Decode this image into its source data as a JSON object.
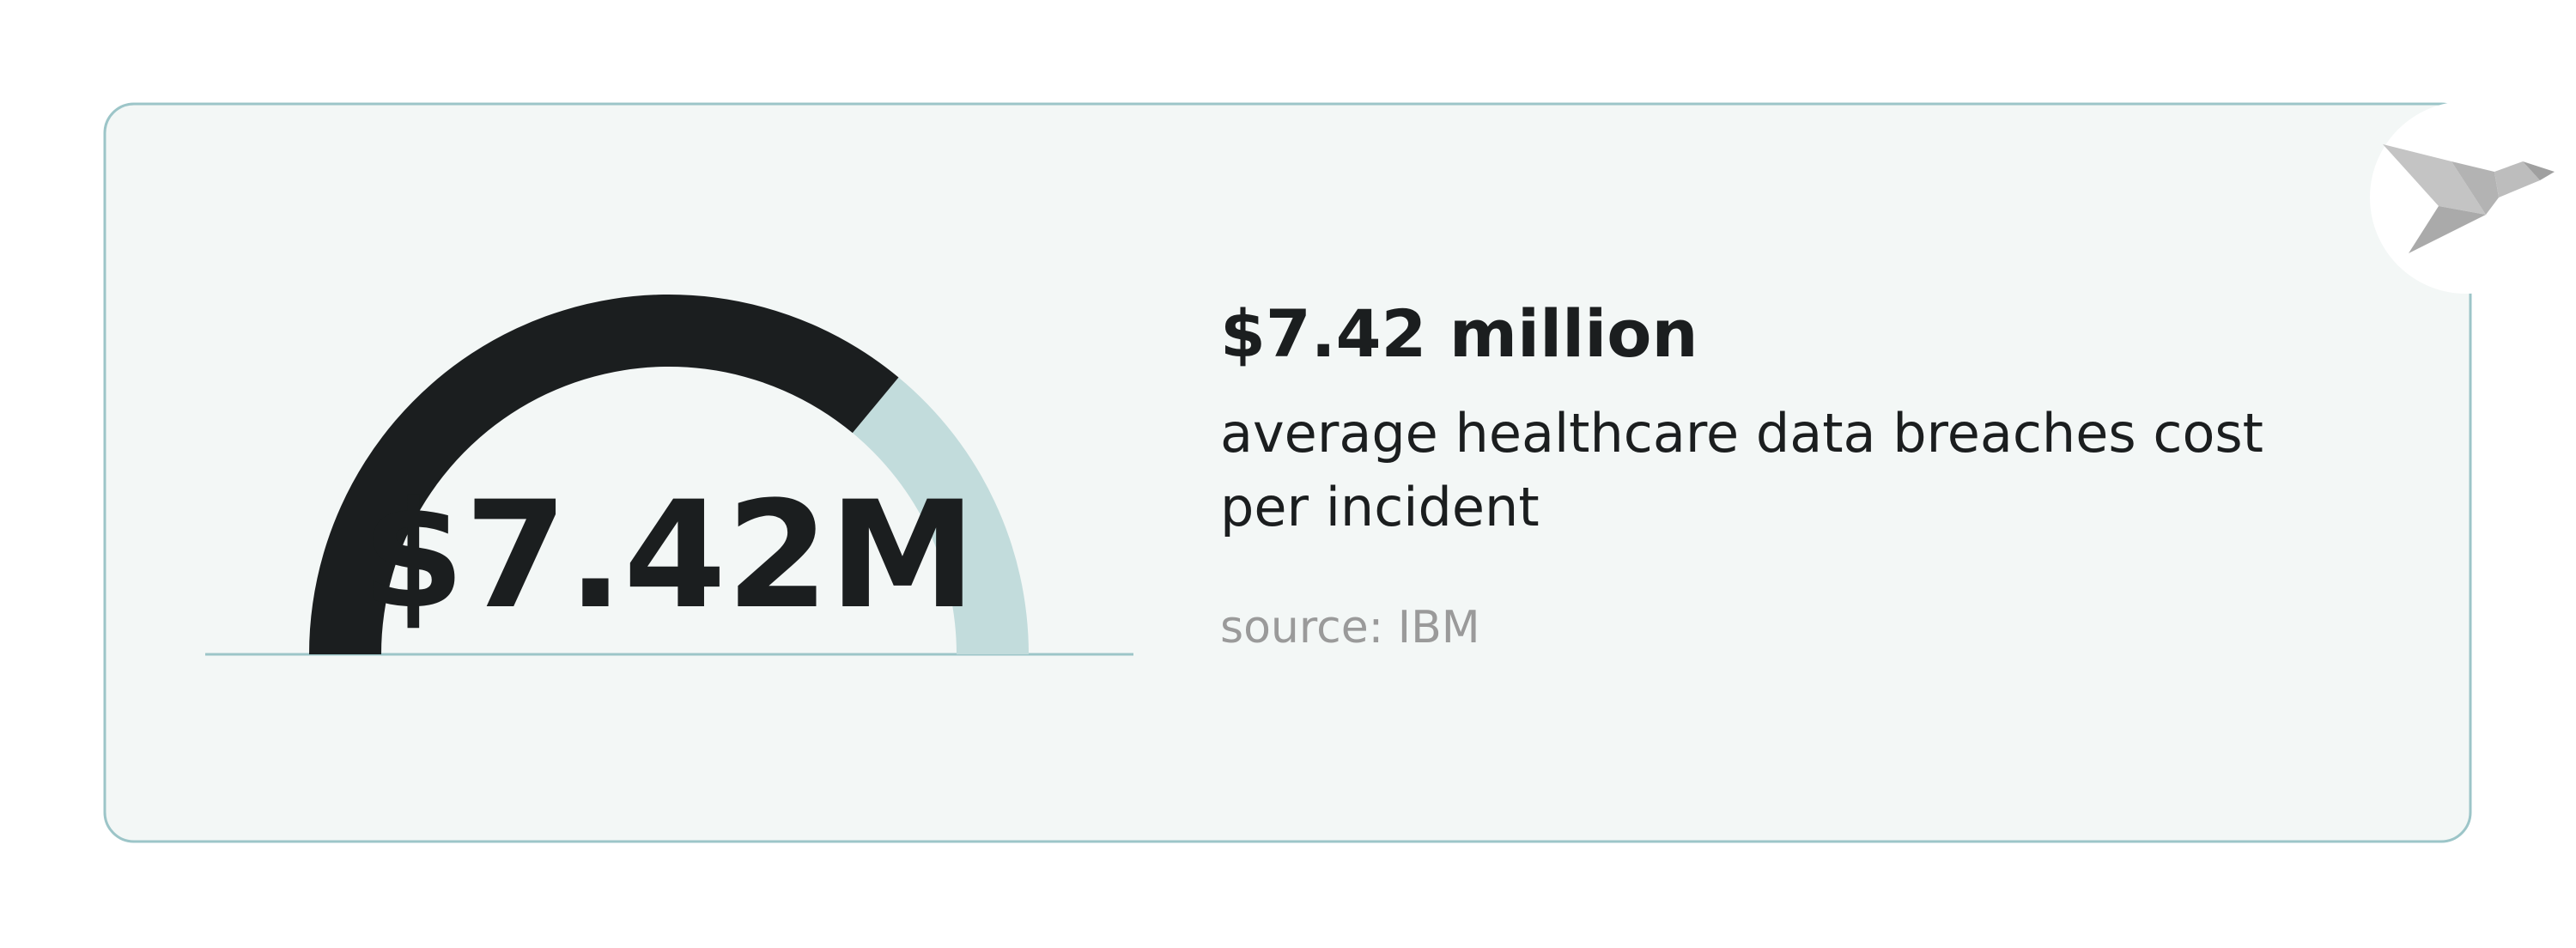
{
  "chart_data": {
    "type": "gauge",
    "value": 7.42,
    "value_label": "$7.42M",
    "range": [
      0,
      10.3
    ],
    "headline": "$7.42 million",
    "description": [
      "average healthcare data breaches cost",
      "per incident"
    ],
    "source": "source: IBM",
    "color": "#1b1e1f",
    "track_color": "#c2dcdc"
  }
}
